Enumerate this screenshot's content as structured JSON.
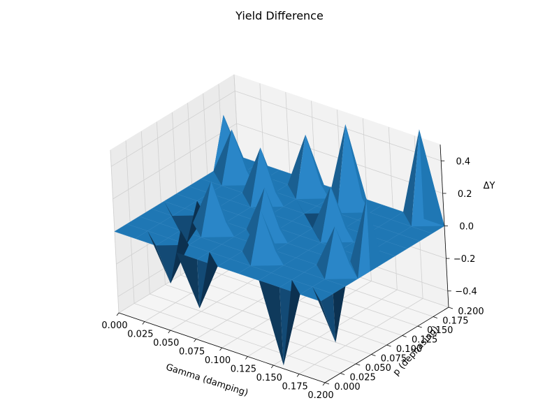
{
  "chart_data": {
    "type": "surface3d",
    "title": "Yield Difference",
    "xlabel": "Gamma (damping)",
    "ylabel": "p (dephasing)",
    "zlabel": "ΔY",
    "xlim": [
      0,
      0.2
    ],
    "ylim": [
      0,
      0.2
    ],
    "zlim": [
      -0.5,
      0.5
    ],
    "xticks": [
      "0.000",
      "0.025",
      "0.050",
      "0.075",
      "0.100",
      "0.125",
      "0.150",
      "0.175",
      "0.200"
    ],
    "yticks": [
      "0.000",
      "0.025",
      "0.050",
      "0.075",
      "0.100",
      "0.125",
      "0.150",
      "0.175",
      "0.200"
    ],
    "zticks": [
      "−0.4",
      "−0.2",
      "0.0",
      "0.2",
      "0.4"
    ],
    "grid": true,
    "surface_color": "#1f77b4",
    "grid_size": 11,
    "spikes": [
      {
        "x": 0.0,
        "y": 0.18,
        "z": 0.3
      },
      {
        "x": 0.02,
        "y": 0.16,
        "z": 0.3
      },
      {
        "x": 0.06,
        "y": 0.14,
        "z": 0.32
      },
      {
        "x": 0.08,
        "y": 0.18,
        "z": 0.35
      },
      {
        "x": 0.12,
        "y": 0.18,
        "z": 0.5
      },
      {
        "x": 0.18,
        "y": 0.2,
        "z": 0.55
      },
      {
        "x": 0.2,
        "y": 0.08,
        "z": 0.45
      },
      {
        "x": 0.18,
        "y": 0.06,
        "z": 0.28
      },
      {
        "x": 0.06,
        "y": 0.06,
        "z": 0.3
      },
      {
        "x": 0.1,
        "y": 0.08,
        "z": 0.3
      },
      {
        "x": 0.12,
        "y": 0.04,
        "z": 0.3
      },
      {
        "x": 0.14,
        "y": 0.12,
        "z": 0.3
      },
      {
        "x": 0.2,
        "y": 0.02,
        "z": -0.3
      },
      {
        "x": 0.16,
        "y": 0.0,
        "z": -0.48
      },
      {
        "x": 0.08,
        "y": 0.0,
        "z": -0.3
      },
      {
        "x": 0.04,
        "y": 0.02,
        "z": -0.28
      },
      {
        "x": 0.02,
        "y": 0.08,
        "z": -0.22
      },
      {
        "x": 0.1,
        "y": 0.16,
        "z": -0.2
      }
    ]
  }
}
